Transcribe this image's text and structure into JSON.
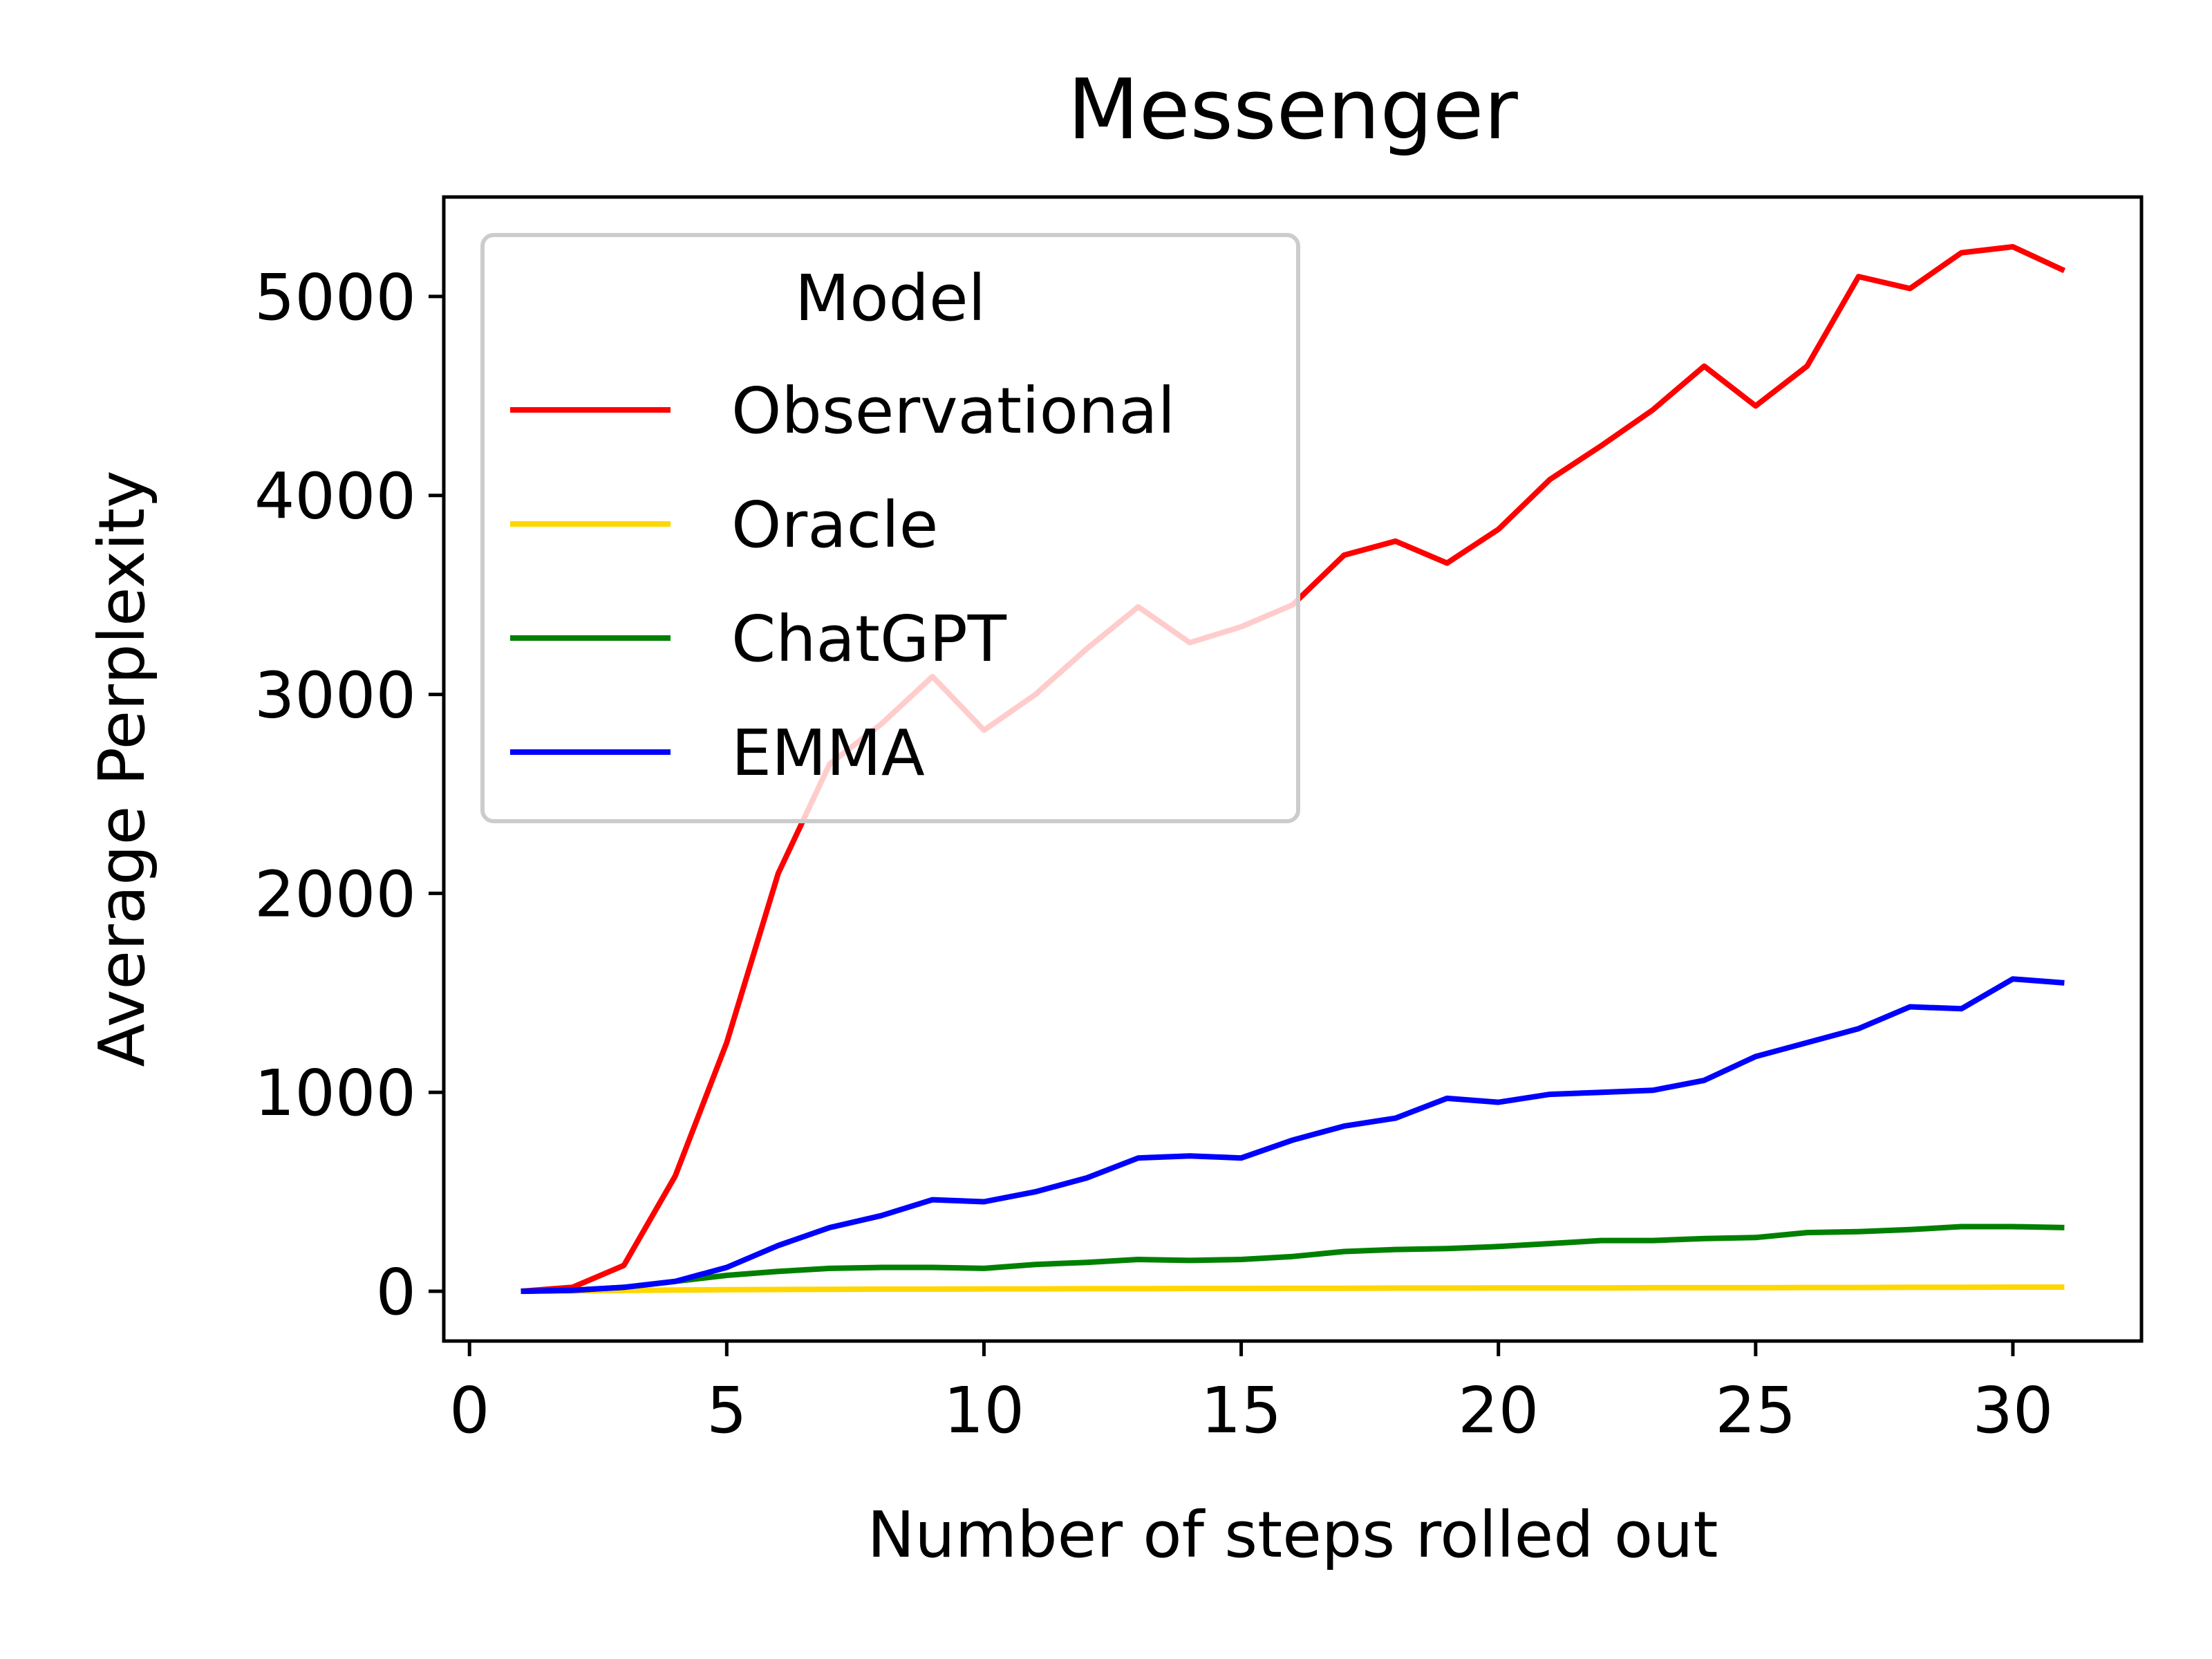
{
  "chart_data": {
    "type": "line",
    "title": "Messenger",
    "xlabel": "Number of steps rolled out",
    "ylabel": "Average Perplexity",
    "xlim": [
      -0.5,
      32.5
    ],
    "ylim": [
      -250,
      5500
    ],
    "xticks": [
      0,
      5,
      10,
      15,
      20,
      25,
      30
    ],
    "yticks": [
      0,
      1000,
      2000,
      3000,
      4000,
      5000
    ],
    "grid": false,
    "legend": {
      "title": "Model",
      "placement": "upper-left"
    },
    "x": [
      1,
      2,
      3,
      4,
      5,
      6,
      7,
      8,
      9,
      10,
      11,
      12,
      13,
      14,
      15,
      16,
      17,
      18,
      19,
      20,
      21,
      22,
      23,
      24,
      25,
      26,
      27,
      28,
      29,
      30,
      31
    ],
    "series": [
      {
        "name": "Observational",
        "color": "#ff0000",
        "values": [
          0,
          20,
          130,
          580,
          1250,
          2100,
          2650,
          2850,
          3090,
          2820,
          3000,
          3230,
          3440,
          3260,
          3340,
          3450,
          3700,
          3770,
          3660,
          3830,
          4080,
          4250,
          4430,
          4650,
          4450,
          4650,
          5100,
          5040,
          5220,
          5250,
          5130
        ]
      },
      {
        "name": "Oracle",
        "color": "#ffd700",
        "values": [
          0,
          2,
          4,
          6,
          8,
          9,
          10,
          11,
          11,
          12,
          12,
          13,
          13,
          14,
          14,
          15,
          15,
          16,
          16,
          17,
          17,
          17,
          18,
          18,
          18,
          19,
          19,
          20,
          20,
          21,
          21
        ]
      },
      {
        "name": "ChatGPT",
        "color": "#008000",
        "values": [
          0,
          5,
          20,
          50,
          80,
          100,
          115,
          120,
          120,
          115,
          135,
          145,
          160,
          155,
          160,
          175,
          200,
          210,
          215,
          225,
          240,
          255,
          255,
          265,
          270,
          295,
          300,
          310,
          325,
          325,
          320
        ]
      },
      {
        "name": "EMMA",
        "color": "#0000ff",
        "values": [
          0,
          5,
          20,
          50,
          120,
          230,
          320,
          380,
          460,
          450,
          500,
          570,
          670,
          680,
          670,
          760,
          830,
          870,
          970,
          950,
          990,
          1000,
          1010,
          1060,
          1180,
          1250,
          1320,
          1430,
          1420,
          1570,
          1550
        ]
      }
    ]
  }
}
